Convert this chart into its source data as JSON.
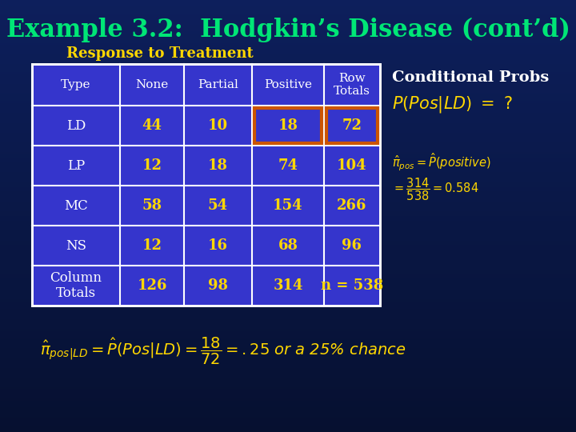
{
  "title": "Example 3.2:  Hodgkin’s Disease (cont’d)",
  "subtitle": "Response to Treatment",
  "bg_color_top": "#0d1f5c",
  "bg_color_bottom": "#061030",
  "title_color": "#00e676",
  "subtitle_color": "#ffd700",
  "table_bg": "#3535cc",
  "table_text_white": "#ffffff",
  "table_text_gold": "#ffd700",
  "highlight_color": "#cc5500",
  "col_headers": [
    "Type",
    "None",
    "Partial",
    "Positive",
    "Row\nTotals"
  ],
  "rows": [
    [
      "LD",
      "44",
      "10",
      "18",
      "72"
    ],
    [
      "LP",
      "12",
      "18",
      "74",
      "104"
    ],
    [
      "MC",
      "58",
      "54",
      "154",
      "266"
    ],
    [
      "NS",
      "12",
      "16",
      "68",
      "96"
    ],
    [
      "Column\nTotals",
      "126",
      "98",
      "314",
      "n = 538"
    ]
  ],
  "cond_probs_title": "Conditional Probs",
  "right_formula1": "$P(Pos|LD)\\ =?$",
  "right_formula2": "$\\hat{\\pi}_{pos} = \\hat{P}(positive)$",
  "right_formula3": "$= \\dfrac{314}{538} = 0.584$",
  "bottom_formula": "$\\hat{\\pi}_{pos|LD} = \\hat{P}(Pos|LD) = \\dfrac{18}{72} = .25$ or a 25% chance"
}
